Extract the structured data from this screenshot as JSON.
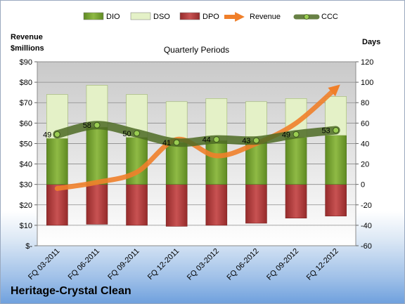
{
  "company": "Heritage-Crystal Clean",
  "chart_data": {
    "type": "bar",
    "title": "Quarterly Periods",
    "categories": [
      "FQ 03-2011",
      "FQ 06-2011",
      "FQ 09-2011",
      "FQ 12-2011",
      "FQ 03-2012",
      "FQ 06-2012",
      "FQ 09-2012",
      "FQ 12-2012"
    ],
    "stacked": true,
    "series": [
      {
        "name": "DIO",
        "type": "bar",
        "axis": "right",
        "color": "#6e9a2a",
        "values": [
          45,
          56,
          46,
          41,
          43,
          43,
          46,
          48
        ]
      },
      {
        "name": "DSO",
        "type": "bar",
        "axis": "right",
        "color": "#e4f1c7",
        "values": [
          43,
          41,
          42,
          40,
          41,
          38,
          38,
          38
        ]
      },
      {
        "name": "DPO",
        "type": "bar",
        "axis": "right",
        "color": "#b23a3a",
        "values": [
          -40,
          -39,
          -40,
          -41,
          -40,
          -38,
          -33,
          -31
        ]
      },
      {
        "name": "Revenue",
        "type": "line",
        "axis": "left",
        "color": "#f07f2a",
        "values": [
          28,
          31,
          36,
          52,
          44,
          50,
          60,
          77
        ]
      },
      {
        "name": "CCC",
        "type": "line",
        "axis": "right",
        "color": "#4e6b24",
        "values": [
          49,
          58,
          50,
          41,
          44,
          43,
          49,
          53
        ]
      }
    ],
    "data_labels": [
      "49",
      "58",
      "50",
      "41",
      "44",
      "43",
      "49",
      "53"
    ],
    "left_axis": {
      "label": "Revenue $millions",
      "label_lines": [
        "Revenue",
        "$millions"
      ],
      "min": 0,
      "max": 90,
      "step": 10,
      "ticks": [
        "$-",
        "$10",
        "$20",
        "$30",
        "$40",
        "$50",
        "$60",
        "$70",
        "$80",
        "$90"
      ]
    },
    "right_axis": {
      "label": "Days",
      "min": -60,
      "max": 120,
      "step": 20,
      "ticks": [
        "-60",
        "-40",
        "-20",
        "0",
        "20",
        "40",
        "60",
        "80",
        "100",
        "120"
      ]
    },
    "legend_position": "top",
    "grid": true
  }
}
